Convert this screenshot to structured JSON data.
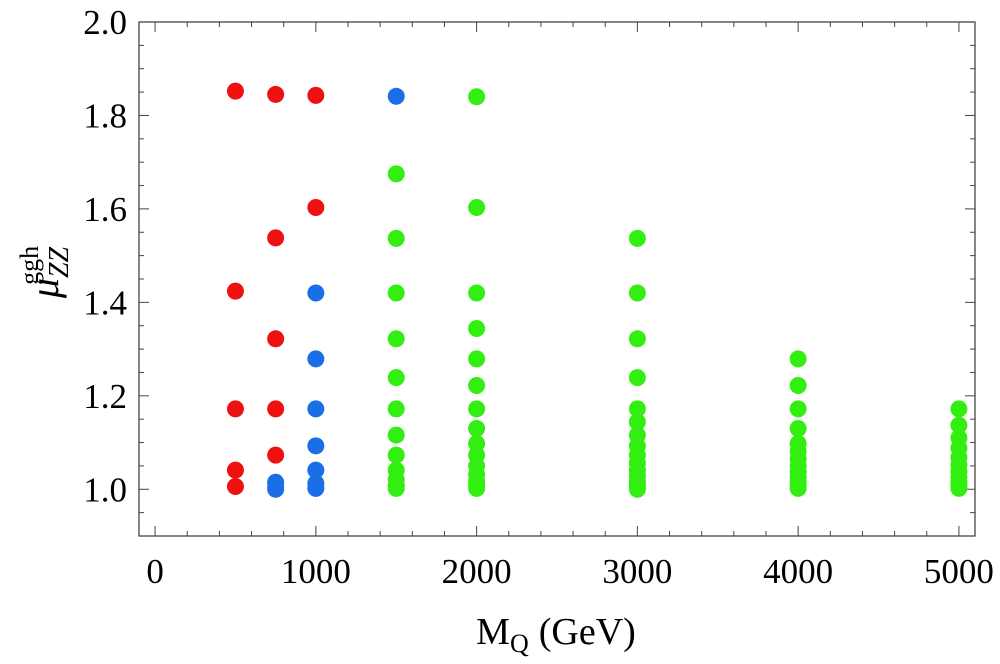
{
  "chart_data": {
    "type": "scatter",
    "title": "",
    "xlabel": {
      "main": "M",
      "sub": "Q",
      "unit": "(GeV)"
    },
    "ylabel": {
      "symbol": "μ",
      "sub": "ZZ",
      "sup": "ggh"
    },
    "xlim": [
      -100,
      5100
    ],
    "ylim": [
      0.9,
      2.0
    ],
    "xticks": [
      0,
      1000,
      2000,
      3000,
      4000,
      5000
    ],
    "yticks": [
      1.0,
      1.2,
      1.4,
      1.6,
      1.8,
      2.0
    ],
    "ytick_labels": [
      "1.0",
      "1.2",
      "1.4",
      "1.6",
      "1.8",
      "2.0"
    ],
    "grid": false,
    "series": [
      {
        "name": "red",
        "color": "#ee1111",
        "points": [
          [
            500,
            1.852
          ],
          [
            500,
            1.424
          ],
          [
            500,
            1.172
          ],
          [
            500,
            1.041
          ],
          [
            500,
            1.006
          ],
          [
            750,
            1.845
          ],
          [
            750,
            1.538
          ],
          [
            750,
            1.322
          ],
          [
            750,
            1.172
          ],
          [
            750,
            1.073
          ],
          [
            1000,
            1.843
          ],
          [
            1000,
            1.603
          ]
        ]
      },
      {
        "name": "blue",
        "color": "#1a6fe6",
        "points": [
          [
            750,
            1.015
          ],
          [
            750,
            1.005
          ],
          [
            750,
            1.0
          ],
          [
            1000,
            1.42
          ],
          [
            1000,
            1.279
          ],
          [
            1000,
            1.172
          ],
          [
            1000,
            1.093
          ],
          [
            1000,
            1.041
          ],
          [
            1000,
            1.013
          ],
          [
            1000,
            1.002
          ],
          [
            1500,
            1.841
          ]
        ]
      },
      {
        "name": "green",
        "color": "#33ee11",
        "points": [
          [
            1500,
            1.675
          ],
          [
            1500,
            1.537
          ],
          [
            1500,
            1.42
          ],
          [
            1500,
            1.322
          ],
          [
            1500,
            1.239
          ],
          [
            1500,
            1.172
          ],
          [
            1500,
            1.116
          ],
          [
            1500,
            1.073
          ],
          [
            1500,
            1.041
          ],
          [
            1500,
            1.021
          ],
          [
            1500,
            1.008
          ],
          [
            1500,
            1.002
          ],
          [
            2000,
            1.84
          ],
          [
            2000,
            1.603
          ],
          [
            2000,
            1.42
          ],
          [
            2000,
            1.344
          ],
          [
            2000,
            1.279
          ],
          [
            2000,
            1.222
          ],
          [
            2000,
            1.172
          ],
          [
            2000,
            1.13
          ],
          [
            2000,
            1.098
          ],
          [
            2000,
            1.073
          ],
          [
            2000,
            1.05
          ],
          [
            2000,
            1.032
          ],
          [
            2000,
            1.018
          ],
          [
            2000,
            1.008
          ],
          [
            2000,
            1.002
          ],
          [
            3000,
            1.537
          ],
          [
            3000,
            1.42
          ],
          [
            3000,
            1.322
          ],
          [
            3000,
            1.239
          ],
          [
            3000,
            1.172
          ],
          [
            3000,
            1.144
          ],
          [
            3000,
            1.116
          ],
          [
            3000,
            1.093
          ],
          [
            3000,
            1.073
          ],
          [
            3000,
            1.056
          ],
          [
            3000,
            1.041
          ],
          [
            3000,
            1.029
          ],
          [
            3000,
            1.018
          ],
          [
            3000,
            1.01
          ],
          [
            3000,
            1.004
          ],
          [
            3000,
            1.0
          ],
          [
            4000,
            1.279
          ],
          [
            4000,
            1.222
          ],
          [
            4000,
            1.172
          ],
          [
            4000,
            1.13
          ],
          [
            4000,
            1.098
          ],
          [
            4000,
            1.081
          ],
          [
            4000,
            1.065
          ],
          [
            4000,
            1.05
          ],
          [
            4000,
            1.037
          ],
          [
            4000,
            1.026
          ],
          [
            4000,
            1.016
          ],
          [
            4000,
            1.008
          ],
          [
            4000,
            1.002
          ],
          [
            5000,
            1.172
          ],
          [
            5000,
            1.137
          ],
          [
            5000,
            1.11
          ],
          [
            5000,
            1.088
          ],
          [
            5000,
            1.068
          ],
          [
            5000,
            1.052
          ],
          [
            5000,
            1.038
          ],
          [
            5000,
            1.026
          ],
          [
            5000,
            1.016
          ],
          [
            5000,
            1.008
          ],
          [
            5000,
            1.002
          ]
        ]
      }
    ]
  }
}
